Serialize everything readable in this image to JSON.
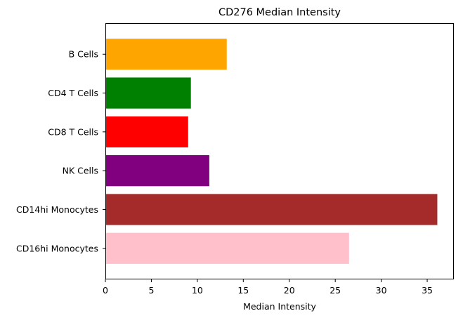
{
  "chart_data": {
    "type": "bar",
    "orientation": "horizontal",
    "title": "CD276 Median Intensity",
    "xlabel": "Median Intensity",
    "ylabel": "",
    "categories": [
      "B Cells",
      "CD4 T Cells",
      "CD8 T Cells",
      "NK Cells",
      "CD14hi Monocytes",
      "CD16hi Monocytes"
    ],
    "values": [
      13.2,
      9.3,
      9.0,
      11.3,
      36.1,
      26.5
    ],
    "colors": [
      "#ffa500",
      "#008000",
      "#ff0000",
      "#800080",
      "#a52a2a",
      "#ffc0cb"
    ],
    "xlim": [
      0,
      37.9
    ],
    "xticks": [
      0,
      5,
      10,
      15,
      20,
      25,
      30,
      35
    ],
    "grid": false,
    "legend": "none"
  }
}
